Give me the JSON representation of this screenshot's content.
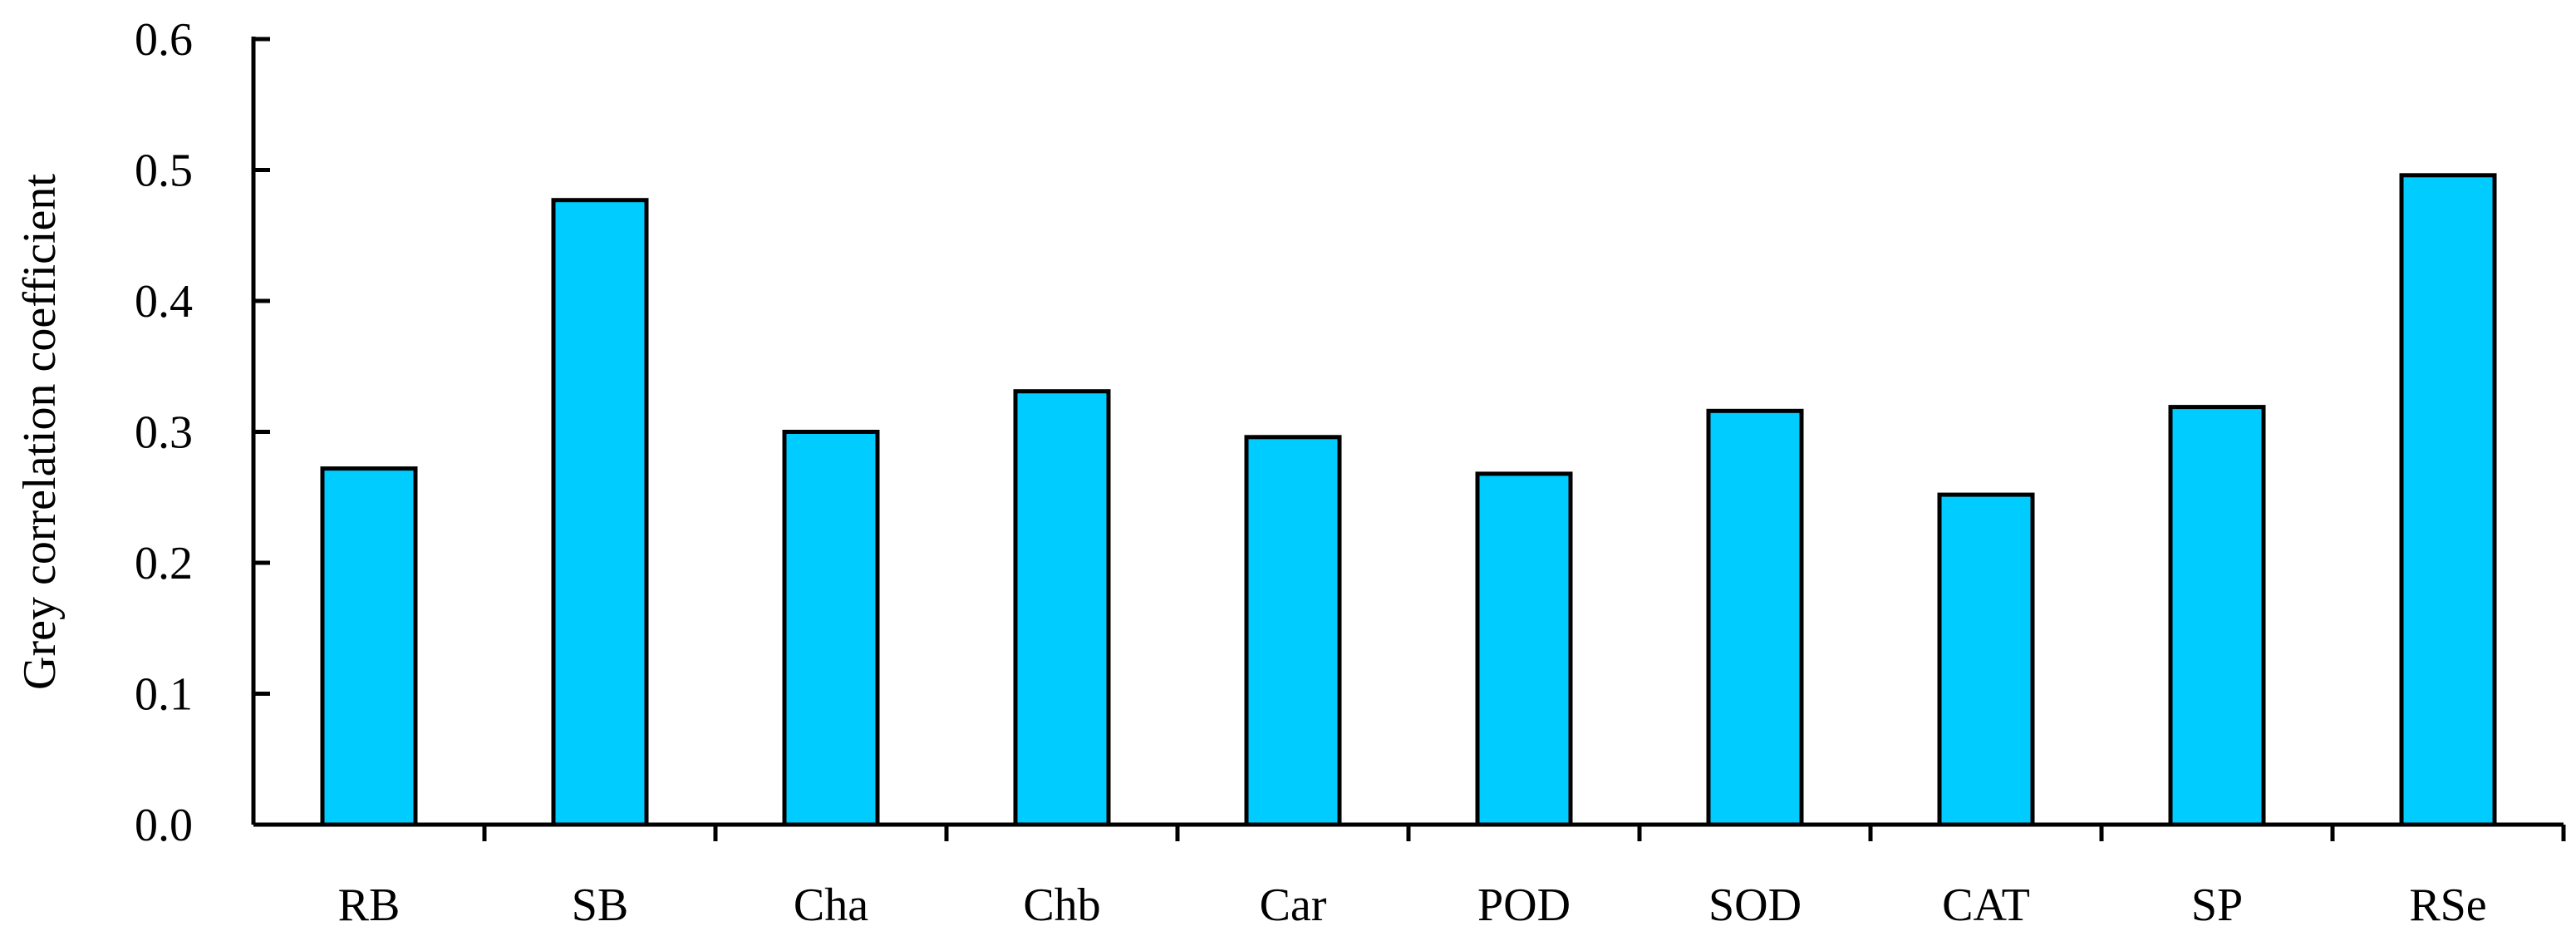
{
  "chart_data": {
    "type": "bar",
    "title": "",
    "xlabel": "",
    "ylabel": "Grey correlation coefficient",
    "categories": [
      "RB",
      "SB",
      "Cha",
      "Chb",
      "Car",
      "POD",
      "SOD",
      "CAT",
      "SP",
      "RSe"
    ],
    "values": [
      0.272,
      0.477,
      0.3,
      0.331,
      0.296,
      0.268,
      0.316,
      0.252,
      0.319,
      0.496
    ],
    "ylim": [
      0.0,
      0.6
    ],
    "yticks": [
      "0.0",
      "0.1",
      "0.2",
      "0.3",
      "0.4",
      "0.5",
      "0.6"
    ],
    "grid": false,
    "legend": "none",
    "colors": {
      "bar_fill": "#00CCFF",
      "bar_stroke": "#000000",
      "axis": "#000000",
      "text": "#000000"
    }
  }
}
